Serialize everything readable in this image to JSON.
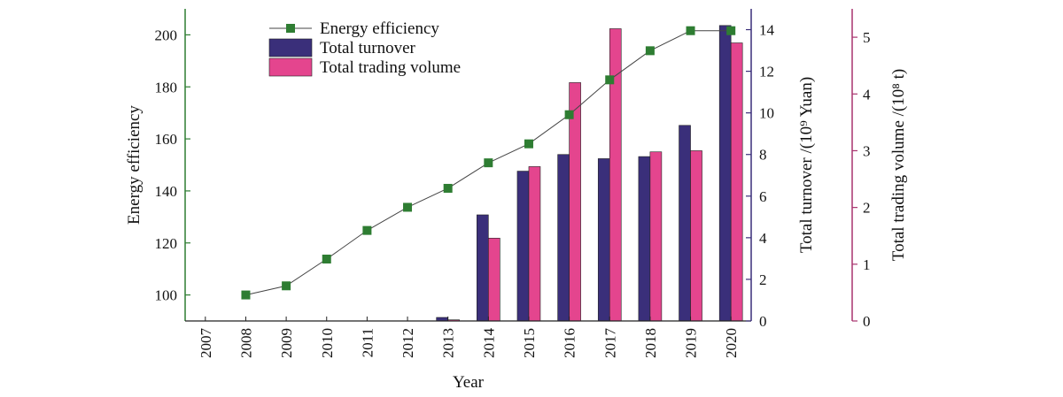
{
  "chart_data": {
    "type": "bar",
    "x": [
      "2007",
      "2008",
      "2009",
      "2010",
      "2011",
      "2012",
      "2013",
      "2014",
      "2015",
      "2016",
      "2017",
      "2018",
      "2019",
      "2020"
    ],
    "xlabel": "Year",
    "series": [
      {
        "name": "Energy efficiency",
        "type": "line",
        "axis": "left",
        "color": "#2e7d32",
        "values": [
          null,
          100,
          103.5,
          113.8,
          124.8,
          133.7,
          141,
          150.8,
          158.1,
          169.3,
          182.7,
          193.9,
          201.6,
          201.6
        ]
      },
      {
        "name": "Total turnover",
        "type": "bar",
        "axis": "right1",
        "color": "#3a2f7a",
        "values": [
          null,
          null,
          null,
          null,
          null,
          null,
          0.17,
          5.1,
          7.2,
          8.0,
          7.8,
          7.9,
          9.4,
          14.2
        ]
      },
      {
        "name": "Total trading volume",
        "type": "bar",
        "axis": "right2",
        "color": "#e4458e",
        "values": [
          null,
          null,
          null,
          null,
          null,
          null,
          0.02,
          1.46,
          2.72,
          4.2,
          5.15,
          2.98,
          3.0,
          4.9
        ]
      }
    ],
    "axes": {
      "left": {
        "label": "Energy efficiency",
        "range": [
          90,
          210
        ],
        "ticks": [
          100,
          120,
          140,
          160,
          180,
          200
        ],
        "color": "#2e7d32"
      },
      "right1": {
        "label": "Total turnover /(10⁹ Yuan)",
        "range": [
          0,
          15
        ],
        "ticks": [
          0,
          2,
          4,
          6,
          8,
          10,
          12,
          14
        ],
        "color": "#3a2f7a"
      },
      "right2": {
        "label": "Total trading volume /(10⁸ t)",
        "range": [
          0,
          5.5
        ],
        "ticks": [
          0,
          1,
          2,
          3,
          4,
          5
        ],
        "color": "#a8336e"
      }
    },
    "legend": {
      "position": "top-left",
      "entries": [
        "Energy efficiency",
        "Total turnover",
        "Total trading volume"
      ]
    },
    "grid": false
  }
}
